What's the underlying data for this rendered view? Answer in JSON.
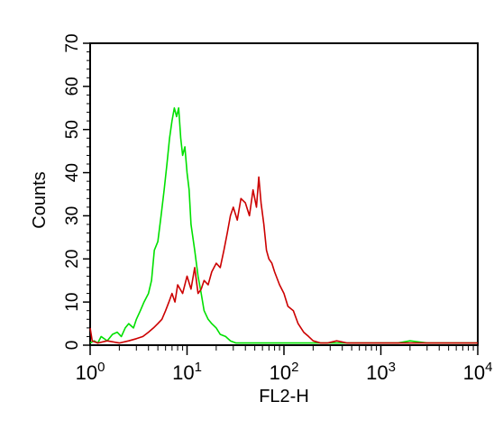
{
  "chart_data": {
    "type": "line",
    "title": "",
    "xlabel": "FL2-H",
    "ylabel": "Counts",
    "x_scale": "log",
    "xlim": [
      1,
      10000
    ],
    "ylim": [
      0,
      70
    ],
    "grid": false,
    "legend": "none",
    "x_ticks": [
      {
        "value": 1,
        "base": "10",
        "exp": "0"
      },
      {
        "value": 10,
        "base": "10",
        "exp": "1"
      },
      {
        "value": 100,
        "base": "10",
        "exp": "2"
      },
      {
        "value": 1000,
        "base": "10",
        "exp": "3"
      },
      {
        "value": 10000,
        "base": "10",
        "exp": "4"
      }
    ],
    "y_ticks": [
      {
        "value": 0,
        "label": "0"
      },
      {
        "value": 10,
        "label": "10"
      },
      {
        "value": 20,
        "label": "20"
      },
      {
        "value": 30,
        "label": "30"
      },
      {
        "value": 40,
        "label": "40"
      },
      {
        "value": 50,
        "label": "50"
      },
      {
        "value": 60,
        "label": "60"
      },
      {
        "value": 70,
        "label": "70"
      }
    ],
    "series": [
      {
        "color": "#00e000",
        "x": [
          1.0,
          1.1,
          1.2,
          1.3,
          1.5,
          1.7,
          1.9,
          2.1,
          2.3,
          2.5,
          2.8,
          3.0,
          3.3,
          3.6,
          4.0,
          4.3,
          4.6,
          5.0,
          5.4,
          5.8,
          6.2,
          6.6,
          7.0,
          7.4,
          7.8,
          8.2,
          8.6,
          9.0,
          9.5,
          10.0,
          10.5,
          11.0,
          12.0,
          13.0,
          14.0,
          15.0,
          16.5,
          18.0,
          20.0,
          22.0,
          25.0,
          28.0,
          32.0,
          36.0,
          40.0,
          50.0,
          60.0,
          80.0,
          100.0,
          150.0,
          200.0,
          300.0,
          500.0,
          700.0,
          1000.0,
          1500.0,
          2000.0,
          3000.0,
          5000.0,
          10000.0
        ],
        "y": [
          0.5,
          1.0,
          0.5,
          2.0,
          1.0,
          2.5,
          3.0,
          2.0,
          4.0,
          5.0,
          4.0,
          6.0,
          8.0,
          10.0,
          12.0,
          15.0,
          22.0,
          24.0,
          30.0,
          36.0,
          42.0,
          48.0,
          52.0,
          55.0,
          53.0,
          55.0,
          48.0,
          44.0,
          46.0,
          40.0,
          36.0,
          28.0,
          22.0,
          16.0,
          12.0,
          8.0,
          6.0,
          5.0,
          4.0,
          2.5,
          2.0,
          1.0,
          0.5,
          0.5,
          0.5,
          0.5,
          0.5,
          0.5,
          0.5,
          0.5,
          0.5,
          0.5,
          0.5,
          0.5,
          0.5,
          0.5,
          1.0,
          0.5,
          0.5,
          0.5
        ]
      },
      {
        "color": "#cc0000",
        "x": [
          1.0,
          1.05,
          1.2,
          1.5,
          2.0,
          2.5,
          3.0,
          3.5,
          4.0,
          4.5,
          5.0,
          5.5,
          6.0,
          6.5,
          7.0,
          7.5,
          8.0,
          9.0,
          10.0,
          11.0,
          12.0,
          13.0,
          14.0,
          15.0,
          16.5,
          18.0,
          20.0,
          22.0,
          24.0,
          26.0,
          28.0,
          30.0,
          33.0,
          36.0,
          40.0,
          44.0,
          48.0,
          52.0,
          55.0,
          58.0,
          62.0,
          66.0,
          70.0,
          75.0,
          80.0,
          90.0,
          100.0,
          110.0,
          125.0,
          140.0,
          160.0,
          180.0,
          200.0,
          240.0,
          280.0,
          350.0,
          450.0,
          600.0,
          800.0,
          1000.0,
          1500.0,
          2000.0,
          3000.0,
          5000.0,
          10000.0
        ],
        "y": [
          4.0,
          1.0,
          0.5,
          1.0,
          0.5,
          1.0,
          1.5,
          2.0,
          3.0,
          4.0,
          5.0,
          6.0,
          8.0,
          10.0,
          12.0,
          10.0,
          14.0,
          12.0,
          16.0,
          13.0,
          18.0,
          12.0,
          13.0,
          15.0,
          14.0,
          17.0,
          19.0,
          18.0,
          22.0,
          26.0,
          30.0,
          32.0,
          29.0,
          34.0,
          33.0,
          30.0,
          36.0,
          32.0,
          39.0,
          33.0,
          28.0,
          22.0,
          20.0,
          19.0,
          17.0,
          14.0,
          12.0,
          9.0,
          8.0,
          5.0,
          3.0,
          2.0,
          1.0,
          0.5,
          0.5,
          1.0,
          0.5,
          0.5,
          0.5,
          0.5,
          0.5,
          0.5,
          0.5,
          0.5,
          0.5
        ]
      }
    ]
  }
}
